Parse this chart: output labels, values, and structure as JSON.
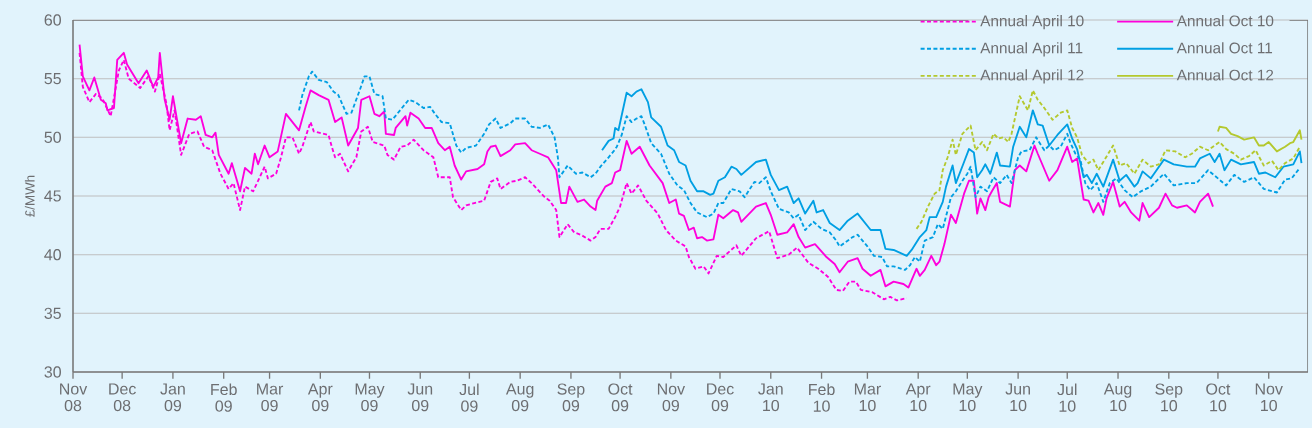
{
  "chart_data": {
    "type": "line",
    "ylabel": "£/MWh",
    "xlim": [
      "2008-11-01",
      "2010-11-25"
    ],
    "ylim": [
      30,
      60
    ],
    "yticks": [
      30,
      35,
      40,
      45,
      50,
      55,
      60
    ],
    "xticks": [
      {
        "value": "2008-11",
        "label": "Nov 08"
      },
      {
        "value": "2008-12",
        "label": "Dec 08"
      },
      {
        "value": "2009-01",
        "label": "Jan 09"
      },
      {
        "value": "2009-02",
        "label": "Feb 09"
      },
      {
        "value": "2009-03",
        "label": "Mar 09"
      },
      {
        "value": "2009-04",
        "label": "Apr 09"
      },
      {
        "value": "2009-05",
        "label": "May 09"
      },
      {
        "value": "2009-06",
        "label": "Jun 09"
      },
      {
        "value": "2009-07",
        "label": "Jul 09"
      },
      {
        "value": "2009-08",
        "label": "Aug 09"
      },
      {
        "value": "2009-09",
        "label": "Sep 09"
      },
      {
        "value": "2009-10",
        "label": "Oct 09"
      },
      {
        "value": "2009-11",
        "label": "Nov 09"
      },
      {
        "value": "2009-12",
        "label": "Dec 09"
      },
      {
        "value": "2010-01",
        "label": "Jan 10"
      },
      {
        "value": "2010-02",
        "label": "Feb 10"
      },
      {
        "value": "2010-03",
        "label": "Mar 10"
      },
      {
        "value": "2010-04",
        "label": "Apr 10"
      },
      {
        "value": "2010-05",
        "label": "May 10"
      },
      {
        "value": "2010-06",
        "label": "Jun 10"
      },
      {
        "value": "2010-07",
        "label": "Jul 10"
      },
      {
        "value": "2010-08",
        "label": "Aug 10"
      },
      {
        "value": "2010-09",
        "label": "Sep 10"
      },
      {
        "value": "2010-10",
        "label": "Oct 10"
      },
      {
        "value": "2010-11",
        "label": "Nov 10"
      }
    ],
    "grid": "y",
    "legend": "top right",
    "marker": "none",
    "series": [
      {
        "name": "Annual April 10",
        "color": "#ff00dc",
        "line_style": "dashed",
        "x": [
          "2008-11-05",
          "2008-11-07",
          "2008-11-11",
          "2008-11-15",
          "2008-11-19",
          "2008-11-24",
          "2008-11-29",
          "2008-12-02",
          "2008-12-05",
          "2008-12-12",
          "2008-12-17",
          "2008-12-21",
          "2008-12-24",
          "2008-12-28",
          "2008-12-30",
          "2009-01-02",
          "2009-01-06",
          "2009-01-11",
          "2009-01-16",
          "2009-01-20",
          "2009-01-25",
          "2009-01-30",
          "2009-02-04",
          "2009-02-07",
          "2009-02-11",
          "2009-02-14",
          "2009-02-19",
          "2009-02-23",
          "2009-02-26",
          "2009-02-28",
          "2009-03-05",
          "2009-03-08",
          "2009-03-11",
          "2009-03-15",
          "2009-03-19",
          "2009-03-21",
          "2009-03-26",
          "2009-03-28",
          "2009-04-06",
          "2009-04-08",
          "2009-04-10",
          "2009-04-13",
          "2009-04-18",
          "2009-04-20",
          "2009-04-23",
          "2009-04-26",
          "2009-04-30",
          "2009-05-03",
          "2009-05-10",
          "2009-05-12",
          "2009-05-16",
          "2009-05-20",
          "2009-05-24",
          "2009-05-28",
          "2009-06-03",
          "2009-06-06",
          "2009-06-09",
          "2009-06-12",
          "2009-06-19",
          "2009-06-21",
          "2009-06-26",
          "2009-06-29",
          "2009-07-04",
          "2009-07-10",
          "2009-07-14",
          "2009-07-18",
          "2009-07-20",
          "2009-07-26",
          "2009-07-30",
          "2009-08-04",
          "2009-08-08",
          "2009-08-12",
          "2009-08-16",
          "2009-08-19",
          "2009-08-23",
          "2009-08-25",
          "2009-08-30",
          "2009-09-03",
          "2009-09-07",
          "2009-09-13",
          "2009-09-16",
          "2009-09-19",
          "2009-09-24",
          "2009-09-28",
          "2009-10-01",
          "2009-10-05",
          "2009-10-08",
          "2009-10-12",
          "2009-10-17",
          "2009-10-24",
          "2009-10-29",
          "2009-11-04",
          "2009-11-10",
          "2009-11-12",
          "2009-11-16",
          "2009-11-21",
          "2009-11-24",
          "2009-11-29",
          "2009-12-03",
          "2009-12-11",
          "2009-12-14",
          "2009-12-23",
          "2009-12-31",
          "2010-01-05",
          "2010-01-12",
          "2010-01-17",
          "2010-01-24",
          "2010-01-30",
          "2010-02-05",
          "2010-02-10",
          "2010-02-14",
          "2010-02-18",
          "2010-02-22",
          "2010-02-25",
          "2010-03-04",
          "2010-03-11",
          "2010-03-15",
          "2010-03-19",
          "2010-03-25"
        ],
        "values": [
          57.2,
          54.3,
          53.0,
          53.7,
          53.3,
          51.8,
          55.7,
          56.6,
          55.0,
          54.2,
          55.2,
          53.9,
          55.4,
          52.9,
          50.6,
          52.3,
          48.5,
          50.3,
          50.5,
          49.2,
          48.9,
          46.9,
          45.6,
          46.1,
          43.8,
          45.8,
          45.4,
          46.6,
          47.5,
          46.5,
          46.9,
          48.3,
          50.0,
          50.0,
          48.6,
          49.2,
          51.3,
          50.5,
          50.2,
          49.2,
          48.3,
          48.6,
          47.1,
          47.6,
          48.3,
          50.5,
          50.9,
          49.6,
          49.3,
          48.5,
          48.1,
          49.2,
          49.3,
          49.8,
          48.9,
          48.6,
          48.3,
          46.6,
          46.6,
          44.9,
          43.8,
          44.2,
          44.4,
          44.6,
          46.2,
          46.5,
          45.6,
          46.2,
          46.3,
          46.6,
          46.1,
          45.5,
          44.9,
          44.6,
          43.8,
          41.5,
          42.6,
          41.9,
          41.7,
          41.2,
          41.5,
          42.2,
          42.2,
          43.2,
          44.1,
          46.1,
          45.2,
          45.9,
          44.6,
          43.5,
          42.1,
          41.2,
          40.7,
          39.8,
          38.8,
          39.0,
          38.4,
          39.9,
          39.8,
          40.8,
          39.9,
          41.4,
          42.0,
          39.7,
          40.0,
          40.6,
          39.3,
          38.8,
          38.1,
          37.0,
          36.9,
          37.7,
          37.7,
          37.0,
          36.8,
          36.2,
          36.4,
          36.1,
          36.3
        ]
      },
      {
        "name": "Annual Oct 10",
        "color": "#ff00dc",
        "line_style": "solid",
        "x": [
          "2008-11-05",
          "2008-11-07",
          "2008-11-11",
          "2008-11-14",
          "2008-11-18",
          "2008-11-21",
          "2008-11-22",
          "2008-11-26",
          "2008-11-28",
          "2008-12-02",
          "2008-12-04",
          "2008-12-11",
          "2008-12-16",
          "2008-12-20",
          "2008-12-23",
          "2008-12-24",
          "2008-12-27",
          "2008-12-30",
          "2009-01-01",
          "2009-01-06",
          "2009-01-10",
          "2009-01-15",
          "2009-01-18",
          "2009-01-21",
          "2009-01-25",
          "2009-01-27",
          "2009-01-29",
          "2009-02-04",
          "2009-02-06",
          "2009-02-11",
          "2009-02-14",
          "2009-02-18",
          "2009-02-20",
          "2009-02-22",
          "2009-02-26",
          "2009-03-01",
          "2009-03-06",
          "2009-03-11",
          "2009-03-15",
          "2009-03-19",
          "2009-03-23",
          "2009-03-26",
          "2009-03-31",
          "2009-04-06",
          "2009-04-10",
          "2009-04-14",
          "2009-04-18",
          "2009-04-24",
          "2009-04-26",
          "2009-05-01",
          "2009-05-04",
          "2009-05-07",
          "2009-05-10",
          "2009-05-11",
          "2009-05-16",
          "2009-05-17",
          "2009-05-23",
          "2009-05-24",
          "2009-05-26",
          "2009-05-31",
          "2009-06-04",
          "2009-06-08",
          "2009-06-12",
          "2009-06-16",
          "2009-06-19",
          "2009-06-22",
          "2009-06-26",
          "2009-06-29",
          "2009-07-06",
          "2009-07-10",
          "2009-07-12",
          "2009-07-14",
          "2009-07-17",
          "2009-07-20",
          "2009-07-26",
          "2009-07-29",
          "2009-08-04",
          "2009-08-08",
          "2009-08-13",
          "2009-08-18",
          "2009-08-23",
          "2009-08-26",
          "2009-08-29",
          "2009-08-31",
          "2009-09-05",
          "2009-09-09",
          "2009-09-13",
          "2009-09-16",
          "2009-09-17",
          "2009-09-22",
          "2009-09-26",
          "2009-09-28",
          "2009-10-01",
          "2009-10-05",
          "2009-10-08",
          "2009-10-13",
          "2009-10-19",
          "2009-10-27",
          "2009-10-31",
          "2009-11-04",
          "2009-11-06",
          "2009-11-09",
          "2009-11-12",
          "2009-11-15",
          "2009-11-17",
          "2009-11-20",
          "2009-11-23",
          "2009-11-27",
          "2009-11-30",
          "2009-12-03",
          "2009-12-09",
          "2009-12-12",
          "2009-12-14",
          "2009-12-23",
          "2009-12-29",
          "2010-01-01",
          "2010-01-05",
          "2010-01-11",
          "2010-01-15",
          "2010-01-18",
          "2010-01-22",
          "2010-01-28",
          "2010-02-04",
          "2010-02-09",
          "2010-02-12",
          "2010-02-17",
          "2010-02-23",
          "2010-02-26",
          "2010-03-03",
          "2010-03-09",
          "2010-03-12",
          "2010-03-17",
          "2010-03-23",
          "2010-03-26",
          "2010-03-31",
          "2010-04-02",
          "2010-04-05",
          "2010-04-09",
          "2010-04-12",
          "2010-04-14",
          "2010-04-17",
          "2010-04-21",
          "2010-04-24",
          "2010-04-29",
          "2010-05-02",
          "2010-05-05",
          "2010-05-07",
          "2010-05-09",
          "2010-05-12",
          "2010-05-14",
          "2010-05-16",
          "2010-05-19",
          "2010-05-21",
          "2010-05-27",
          "2010-05-30",
          "2010-06-02",
          "2010-06-06",
          "2010-06-11",
          "2010-06-13",
          "2010-06-20",
          "2010-06-25",
          "2010-07-01",
          "2010-07-04",
          "2010-07-07",
          "2010-07-11",
          "2010-07-14",
          "2010-07-17",
          "2010-07-20",
          "2010-07-23",
          "2010-07-25",
          "2010-07-29",
          "2010-08-02",
          "2010-08-05",
          "2010-08-09",
          "2010-08-14",
          "2010-08-16",
          "2010-08-20",
          "2010-08-26",
          "2010-08-30",
          "2010-09-03",
          "2010-09-06",
          "2010-09-12",
          "2010-09-17",
          "2010-09-20",
          "2010-09-25",
          "2010-09-28"
        ],
        "values": [
          57.9,
          55.2,
          54.0,
          55.1,
          53.2,
          52.9,
          52.3,
          52.5,
          56.6,
          57.2,
          56.2,
          54.6,
          55.7,
          54.3,
          55.1,
          57.2,
          53.2,
          51.5,
          53.5,
          49.5,
          51.6,
          51.5,
          51.8,
          50.2,
          50.0,
          50.4,
          48.5,
          46.9,
          47.8,
          45.4,
          47.4,
          46.9,
          48.6,
          47.7,
          49.3,
          48.3,
          48.8,
          52.0,
          51.3,
          50.6,
          52.6,
          54.0,
          53.6,
          53.2,
          51.3,
          51.7,
          49.3,
          50.8,
          53.2,
          53.5,
          52.0,
          51.8,
          52.2,
          50.3,
          50.2,
          50.8,
          51.8,
          51.0,
          52.1,
          51.6,
          50.8,
          50.8,
          49.5,
          48.9,
          49.2,
          47.6,
          46.4,
          47.1,
          47.3,
          47.7,
          48.8,
          49.2,
          49.3,
          48.4,
          48.9,
          49.4,
          49.5,
          48.9,
          48.6,
          48.3,
          47.2,
          44.4,
          44.4,
          45.8,
          44.5,
          44.7,
          44.1,
          43.8,
          44.6,
          45.8,
          46.1,
          47.0,
          47.2,
          49.7,
          48.6,
          49.2,
          47.6,
          46.1,
          44.4,
          44.7,
          43.5,
          43.3,
          42.1,
          42.3,
          41.4,
          41.5,
          41.2,
          41.3,
          43.4,
          43.1,
          43.8,
          43.6,
          42.8,
          44.1,
          44.4,
          43.4,
          41.7,
          41.9,
          42.6,
          41.5,
          40.6,
          40.9,
          39.8,
          39.2,
          38.5,
          39.4,
          39.7,
          38.8,
          38.2,
          38.7,
          37.3,
          37.7,
          37.5,
          37.2,
          38.8,
          38.2,
          38.7,
          39.9,
          39.1,
          39.4,
          40.9,
          43.4,
          42.7,
          45.2,
          46.3,
          46.3,
          43.5,
          44.8,
          43.8,
          44.9,
          45.4,
          46.1,
          44.5,
          44.1,
          47.2,
          47.6,
          47.1,
          49.3,
          48.6,
          46.3,
          47.2,
          49.2,
          47.9,
          48.2,
          44.7,
          44.6,
          43.6,
          44.4,
          43.4,
          44.8,
          46.2,
          44.1,
          44.5,
          43.6,
          42.9,
          44.4,
          43.2,
          44.0,
          45.2,
          44.2,
          44.0,
          44.2,
          43.6,
          44.5,
          45.2,
          44.1
        ]
      },
      {
        "name": "Annual April 11",
        "color": "#009fe3",
        "line_style": "dashed",
        "x": [
          "2009-03-19",
          "2009-03-21",
          "2009-03-25",
          "2009-03-27",
          "2009-03-31",
          "2009-04-05",
          "2009-04-09",
          "2009-04-12",
          "2009-04-17",
          "2009-04-20",
          "2009-04-25",
          "2009-04-28",
          "2009-05-01",
          "2009-05-04",
          "2009-05-09",
          "2009-05-11",
          "2009-05-15",
          "2009-05-22",
          "2009-05-25",
          "2009-05-29",
          "2009-06-03",
          "2009-06-07",
          "2009-06-10",
          "2009-06-14",
          "2009-06-19",
          "2009-06-23",
          "2009-06-26",
          "2009-06-29",
          "2009-07-05",
          "2009-07-10",
          "2009-07-13",
          "2009-07-17",
          "2009-07-20",
          "2009-07-26",
          "2009-07-29",
          "2009-08-04",
          "2009-08-08",
          "2009-08-13",
          "2009-08-18",
          "2009-08-22",
          "2009-08-24",
          "2009-08-25",
          "2009-08-30",
          "2009-09-04",
          "2009-09-08",
          "2009-09-13",
          "2009-09-16",
          "2009-09-19",
          "2009-09-24",
          "2009-09-27",
          "2009-09-29",
          "2009-10-02",
          "2009-10-05",
          "2009-10-08",
          "2009-10-11",
          "2009-10-14",
          "2009-10-16",
          "2009-10-20",
          "2009-10-26",
          "2009-10-31",
          "2009-11-05",
          "2009-11-09",
          "2009-11-13",
          "2009-11-17",
          "2009-11-20",
          "2009-11-23",
          "2009-11-27",
          "2009-11-30",
          "2009-12-03",
          "2009-12-08",
          "2009-12-13",
          "2009-12-16",
          "2009-12-22",
          "2009-12-25",
          "2009-12-29",
          "2010-01-01",
          "2010-01-06",
          "2010-01-12",
          "2010-01-15",
          "2010-01-18",
          "2010-01-22",
          "2010-01-27",
          "2010-02-01",
          "2010-02-06",
          "2010-02-10",
          "2010-02-12",
          "2010-02-20",
          "2010-02-23",
          "2010-03-01",
          "2010-03-05",
          "2010-03-10",
          "2010-03-13",
          "2010-03-17",
          "2010-03-24",
          "2010-03-27",
          "2010-03-30",
          "2010-04-02",
          "2010-04-05",
          "2010-04-10",
          "2010-04-13",
          "2010-04-16",
          "2010-04-19",
          "2010-04-21",
          "2010-04-24",
          "2010-04-28",
          "2010-05-01",
          "2010-05-03",
          "2010-05-06",
          "2010-05-09",
          "2010-05-13",
          "2010-05-17",
          "2010-05-21",
          "2010-05-25",
          "2010-05-28",
          "2010-06-01",
          "2010-06-03",
          "2010-06-08",
          "2010-06-12",
          "2010-06-17",
          "2010-06-20",
          "2010-06-23",
          "2010-06-27",
          "2010-07-01",
          "2010-07-03",
          "2010-07-06",
          "2010-07-09",
          "2010-07-12",
          "2010-07-15",
          "2010-07-19",
          "2010-07-23",
          "2010-07-27",
          "2010-07-31",
          "2010-08-05",
          "2010-08-10",
          "2010-08-15",
          "2010-08-21",
          "2010-08-29",
          "2010-09-04",
          "2010-09-12",
          "2010-09-18",
          "2010-09-25",
          "2010-10-01",
          "2010-10-06",
          "2010-10-11",
          "2010-10-17",
          "2010-10-23",
          "2010-10-29",
          "2010-11-06",
          "2010-11-11",
          "2010-11-15",
          "2010-11-20"
        ],
        "values": [
          52.3,
          53.6,
          55.2,
          55.6,
          54.9,
          54.7,
          53.9,
          53.6,
          52.0,
          52.1,
          54.0,
          55.2,
          55.2,
          53.7,
          53.5,
          51.6,
          51.5,
          52.7,
          53.2,
          53.0,
          52.5,
          52.6,
          52.0,
          51.3,
          51.2,
          49.3,
          48.7,
          49.1,
          49.3,
          50.3,
          51.1,
          51.6,
          50.8,
          51.2,
          51.6,
          51.6,
          50.9,
          50.8,
          51.1,
          50.0,
          48.3,
          46.6,
          47.6,
          46.9,
          47.0,
          46.6,
          46.9,
          47.5,
          48.3,
          48.8,
          49.2,
          50.2,
          51.8,
          51.3,
          51.6,
          51.8,
          51.1,
          49.5,
          48.6,
          46.9,
          45.9,
          45.5,
          44.4,
          43.6,
          43.4,
          43.2,
          43.5,
          44.4,
          44.4,
          45.6,
          45.4,
          44.9,
          46.2,
          46.1,
          46.6,
          45.4,
          43.9,
          43.6,
          43.1,
          43.4,
          42.1,
          42.8,
          42.2,
          41.9,
          41.2,
          40.7,
          41.5,
          41.7,
          40.7,
          39.9,
          39.8,
          39.0,
          39.0,
          38.7,
          39.1,
          39.8,
          39.4,
          41.2,
          41.5,
          42.6,
          42.2,
          43.8,
          44.9,
          45.4,
          46.3,
          46.9,
          47.5,
          44.9,
          45.8,
          45.4,
          46.6,
          46.1,
          46.8,
          46.1,
          48.3,
          48.8,
          48.9,
          50.0,
          48.9,
          49.3,
          48.9,
          49.2,
          50.3,
          49.5,
          48.6,
          48.1,
          46.1,
          45.5,
          46.1,
          44.5,
          46.1,
          46.5,
          45.5,
          44.9,
          45.4,
          45.8,
          46.9,
          45.9,
          46.1,
          46.1,
          47.2,
          46.5,
          45.9,
          46.8,
          46.2,
          46.6,
          45.6,
          45.3,
          46.4,
          46.5,
          47.4
        ]
      },
      {
        "name": "Annual Oct 11",
        "color": "#009fe3",
        "line_style": "solid",
        "x": [
          "2009-09-20",
          "2009-09-24",
          "2009-09-27",
          "2009-09-28",
          "2009-09-30",
          "2009-10-05",
          "2009-10-08",
          "2009-10-11",
          "2009-10-14",
          "2009-10-18",
          "2009-10-20",
          "2009-10-26",
          "2009-10-30",
          "2009-11-03",
          "2009-11-06",
          "2009-11-10",
          "2009-11-13",
          "2009-11-17",
          "2009-11-21",
          "2009-11-25",
          "2009-11-27",
          "2009-11-30",
          "2009-12-04",
          "2009-12-08",
          "2009-12-11",
          "2009-12-14",
          "2009-12-23",
          "2009-12-29",
          "2010-01-01",
          "2010-01-06",
          "2010-01-11",
          "2010-01-15",
          "2010-01-18",
          "2010-01-22",
          "2010-01-27",
          "2010-01-29",
          "2010-02-02",
          "2010-02-06",
          "2010-02-12",
          "2010-02-17",
          "2010-02-23",
          "2010-03-03",
          "2010-03-09",
          "2010-03-12",
          "2010-03-17",
          "2010-03-25",
          "2010-03-28",
          "2010-04-02",
          "2010-04-06",
          "2010-04-08",
          "2010-04-12",
          "2010-04-16",
          "2010-04-18",
          "2010-04-22",
          "2010-04-24",
          "2010-04-29",
          "2010-05-02",
          "2010-05-05",
          "2010-05-07",
          "2010-05-10",
          "2010-05-12",
          "2010-05-15",
          "2010-05-19",
          "2010-05-21",
          "2010-05-27",
          "2010-05-29",
          "2010-06-02",
          "2010-06-06",
          "2010-06-10",
          "2010-06-13",
          "2010-06-16",
          "2010-06-20",
          "2010-06-25",
          "2010-07-01",
          "2010-07-04",
          "2010-07-07",
          "2010-07-09",
          "2010-07-11",
          "2010-07-13",
          "2010-07-16",
          "2010-07-19",
          "2010-07-23",
          "2010-07-29",
          "2010-08-02",
          "2010-08-06",
          "2010-08-11",
          "2010-08-13",
          "2010-08-16",
          "2010-08-21",
          "2010-08-23",
          "2010-08-29",
          "2010-09-04",
          "2010-09-12",
          "2010-09-17",
          "2010-09-20",
          "2010-09-26",
          "2010-09-29",
          "2010-10-02",
          "2010-10-05",
          "2010-10-09",
          "2010-10-15",
          "2010-10-23",
          "2010-10-26",
          "2010-10-30",
          "2010-11-05",
          "2010-11-10",
          "2010-11-16",
          "2010-11-20",
          "2010-11-21"
        ],
        "values": [
          48.9,
          49.7,
          49.9,
          50.8,
          50.6,
          53.8,
          53.5,
          53.9,
          54.1,
          53.0,
          51.7,
          50.9,
          49.3,
          48.9,
          47.9,
          47.6,
          46.3,
          45.4,
          45.4,
          45.1,
          45.2,
          46.3,
          46.6,
          47.5,
          47.3,
          46.8,
          47.9,
          48.1,
          46.8,
          45.5,
          45.8,
          44.4,
          44.8,
          43.5,
          44.6,
          43.6,
          43.8,
          42.7,
          42.1,
          42.9,
          43.5,
          42.1,
          42.1,
          40.5,
          40.4,
          39.9,
          40.4,
          41.5,
          42.1,
          43.2,
          43.2,
          44.5,
          45.8,
          47.6,
          46.1,
          47.9,
          49.0,
          48.7,
          46.6,
          47.2,
          47.7,
          46.9,
          48.7,
          47.6,
          47.5,
          49.2,
          50.9,
          50.0,
          52.3,
          51.1,
          51.0,
          49.3,
          50.2,
          51.1,
          49.9,
          49.0,
          47.8,
          46.6,
          46.8,
          46.1,
          46.9,
          45.8,
          48.1,
          46.3,
          46.8,
          45.8,
          46.1,
          47.1,
          46.5,
          46.9,
          48.1,
          47.7,
          47.5,
          47.5,
          48.2,
          48.6,
          47.9,
          48.6,
          47.2,
          48.1,
          47.7,
          47.9,
          46.9,
          47.0,
          46.6,
          47.5,
          47.7,
          48.8,
          47.8
        ]
      },
      {
        "name": "Annual April 12",
        "color": "#b4c82e",
        "line_style": "dashed",
        "x": [
          "2010-03-31",
          "2010-04-03",
          "2010-04-07",
          "2010-04-11",
          "2010-04-14",
          "2010-04-16",
          "2010-04-19",
          "2010-04-22",
          "2010-04-24",
          "2010-04-28",
          "2010-05-03",
          "2010-05-06",
          "2010-05-10",
          "2010-05-13",
          "2010-05-17",
          "2010-05-20",
          "2010-05-23",
          "2010-05-26",
          "2010-05-28",
          "2010-06-02",
          "2010-06-07",
          "2010-06-10",
          "2010-06-13",
          "2010-06-17",
          "2010-06-22",
          "2010-06-27",
          "2010-07-01",
          "2010-07-04",
          "2010-07-07",
          "2010-07-10",
          "2010-07-14",
          "2010-07-17",
          "2010-07-20",
          "2010-07-23",
          "2010-07-29",
          "2010-08-02",
          "2010-08-06",
          "2010-08-11",
          "2010-08-16",
          "2010-08-21",
          "2010-08-26",
          "2010-08-30",
          "2010-09-05",
          "2010-09-11",
          "2010-09-15",
          "2010-09-20",
          "2010-09-25",
          "2010-09-29",
          "2010-10-02",
          "2010-10-06",
          "2010-10-11",
          "2010-10-15",
          "2010-10-20",
          "2010-10-24",
          "2010-10-29",
          "2010-11-03",
          "2010-11-07",
          "2010-11-11",
          "2010-11-16",
          "2010-11-20"
        ],
        "values": [
          42.2,
          42.8,
          44.1,
          45.2,
          45.5,
          47.2,
          48.3,
          49.8,
          48.5,
          50.3,
          51.0,
          48.9,
          49.6,
          48.9,
          50.3,
          49.9,
          50.0,
          49.6,
          50.3,
          53.5,
          52.3,
          54.0,
          53.2,
          52.5,
          51.5,
          52.1,
          52.3,
          50.8,
          50.0,
          48.5,
          47.8,
          48.1,
          47.2,
          47.9,
          49.3,
          47.6,
          47.8,
          46.9,
          48.1,
          47.5,
          47.7,
          48.9,
          48.8,
          48.3,
          48.6,
          49.2,
          48.9,
          49.3,
          49.6,
          49.0,
          48.6,
          48.1,
          48.4,
          48.9,
          47.6,
          48.0,
          47.2,
          47.8,
          48.2,
          49.2
        ]
      },
      {
        "name": "Annual Oct 12",
        "color": "#b4c82e",
        "line_style": "solid",
        "x": [
          "2010-10-01",
          "2010-10-02",
          "2010-10-06",
          "2010-10-09",
          "2010-10-13",
          "2010-10-17",
          "2010-10-23",
          "2010-10-26",
          "2010-10-29",
          "2010-11-01",
          "2010-11-06",
          "2010-11-11",
          "2010-11-14",
          "2010-11-16",
          "2010-11-20",
          "2010-11-21"
        ],
        "values": [
          50.5,
          50.9,
          50.8,
          50.3,
          50.1,
          49.8,
          50.0,
          49.3,
          49.3,
          49.6,
          48.8,
          49.2,
          49.5,
          49.6,
          50.6,
          49.8
        ]
      }
    ]
  }
}
